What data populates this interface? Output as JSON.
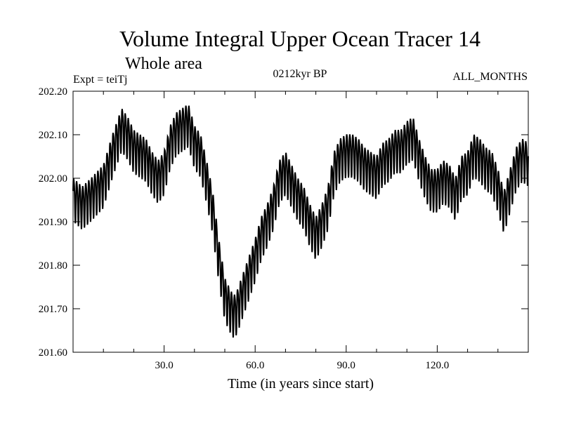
{
  "chart_data": {
    "type": "line",
    "title": "Volume Integral Upper Ocean Tracer 14",
    "subtitle": "Whole area",
    "experiment_label": "Expt = teiTj",
    "period_label": "0212kyr BP",
    "months_label": "ALL_MONTHS",
    "xlabel": "Time (in years since start)",
    "ylabel": "",
    "xlim": [
      0,
      150
    ],
    "ylim": [
      201.6,
      202.2
    ],
    "x_ticks": [
      30,
      60,
      90,
      120
    ],
    "x_tick_labels": [
      "30.0",
      "60.0",
      "90.0",
      "120.0"
    ],
    "x_minor_step": 10,
    "y_ticks": [
      201.6,
      201.7,
      201.8,
      201.9,
      202.0,
      202.1,
      202.2
    ],
    "y_tick_labels": [
      "201.60",
      "201.70",
      "201.80",
      "201.90",
      "202.00",
      "202.10",
      "202.20"
    ],
    "line_color": "#000000",
    "seasonal_amplitude": 0.048,
    "samples_per_year": 12,
    "series": [
      {
        "name": "Upper Ocean Tracer 14",
        "x": [
          0,
          3,
          6,
          10,
          13,
          16,
          18,
          20,
          24,
          26,
          28,
          30,
          32,
          34,
          36,
          38,
          40,
          42,
          44,
          46,
          48,
          50,
          52,
          53,
          54,
          56,
          58,
          60,
          62,
          64,
          66,
          68,
          70,
          72,
          74,
          76,
          78,
          80,
          82,
          84,
          86,
          88,
          90,
          92,
          94,
          96,
          98,
          100,
          102,
          104,
          106,
          108,
          110,
          112,
          114,
          116,
          118,
          120,
          122,
          124,
          126,
          128,
          130,
          132,
          134,
          136,
          138,
          140,
          142,
          144,
          146,
          148,
          150
        ],
        "values": [
          201.96,
          201.94,
          201.96,
          201.99,
          202.06,
          202.12,
          202.1,
          202.07,
          202.05,
          202.02,
          202.0,
          202.02,
          202.08,
          202.11,
          202.12,
          202.13,
          202.08,
          202.06,
          202.0,
          201.93,
          201.82,
          201.73,
          201.7,
          201.69,
          201.7,
          201.74,
          201.78,
          201.82,
          201.87,
          201.9,
          201.94,
          202.0,
          202.02,
          201.99,
          201.96,
          201.94,
          201.9,
          201.87,
          201.9,
          201.94,
          202.02,
          202.05,
          202.06,
          202.06,
          202.05,
          202.03,
          202.02,
          202.01,
          202.04,
          202.05,
          202.07,
          202.07,
          202.09,
          202.1,
          202.05,
          202.01,
          201.98,
          201.98,
          202.0,
          201.99,
          201.96,
          202.01,
          202.02,
          202.06,
          202.05,
          202.03,
          202.02,
          201.98,
          201.93,
          201.98,
          202.03,
          202.05,
          202.04
        ]
      }
    ]
  }
}
